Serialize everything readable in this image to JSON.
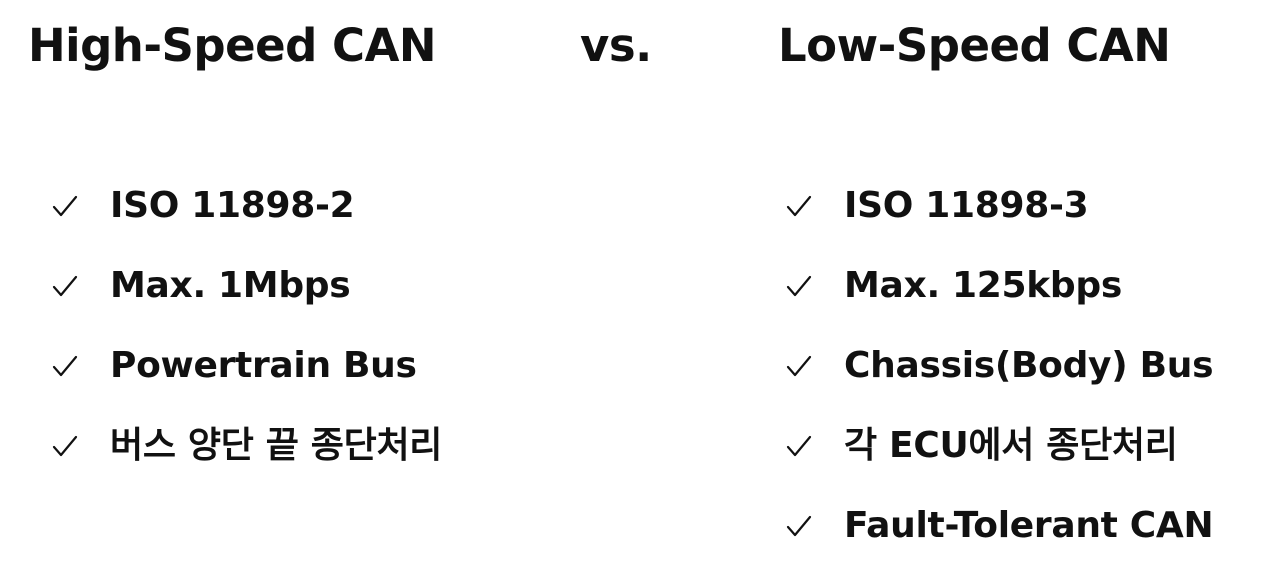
{
  "header": {
    "left_title": "High-Speed CAN",
    "vs_label": "vs.",
    "right_title": "Low-Speed CAN"
  },
  "high_speed": {
    "items": [
      {
        "label": "ISO 11898-2"
      },
      {
        "label": "Max. 1Mbps"
      },
      {
        "label": "Powertrain Bus"
      },
      {
        "label": "버스 양단 끝 종단처리"
      }
    ]
  },
  "low_speed": {
    "items": [
      {
        "label": "ISO 11898-3"
      },
      {
        "label": "Max. 125kbps"
      },
      {
        "label": "Chassis(Body)  Bus"
      },
      {
        "label": "각 ECU에서 종단처리"
      },
      {
        "label": "Fault-Tolerant CAN"
      }
    ]
  },
  "icons": {
    "bullet": "check-icon"
  }
}
